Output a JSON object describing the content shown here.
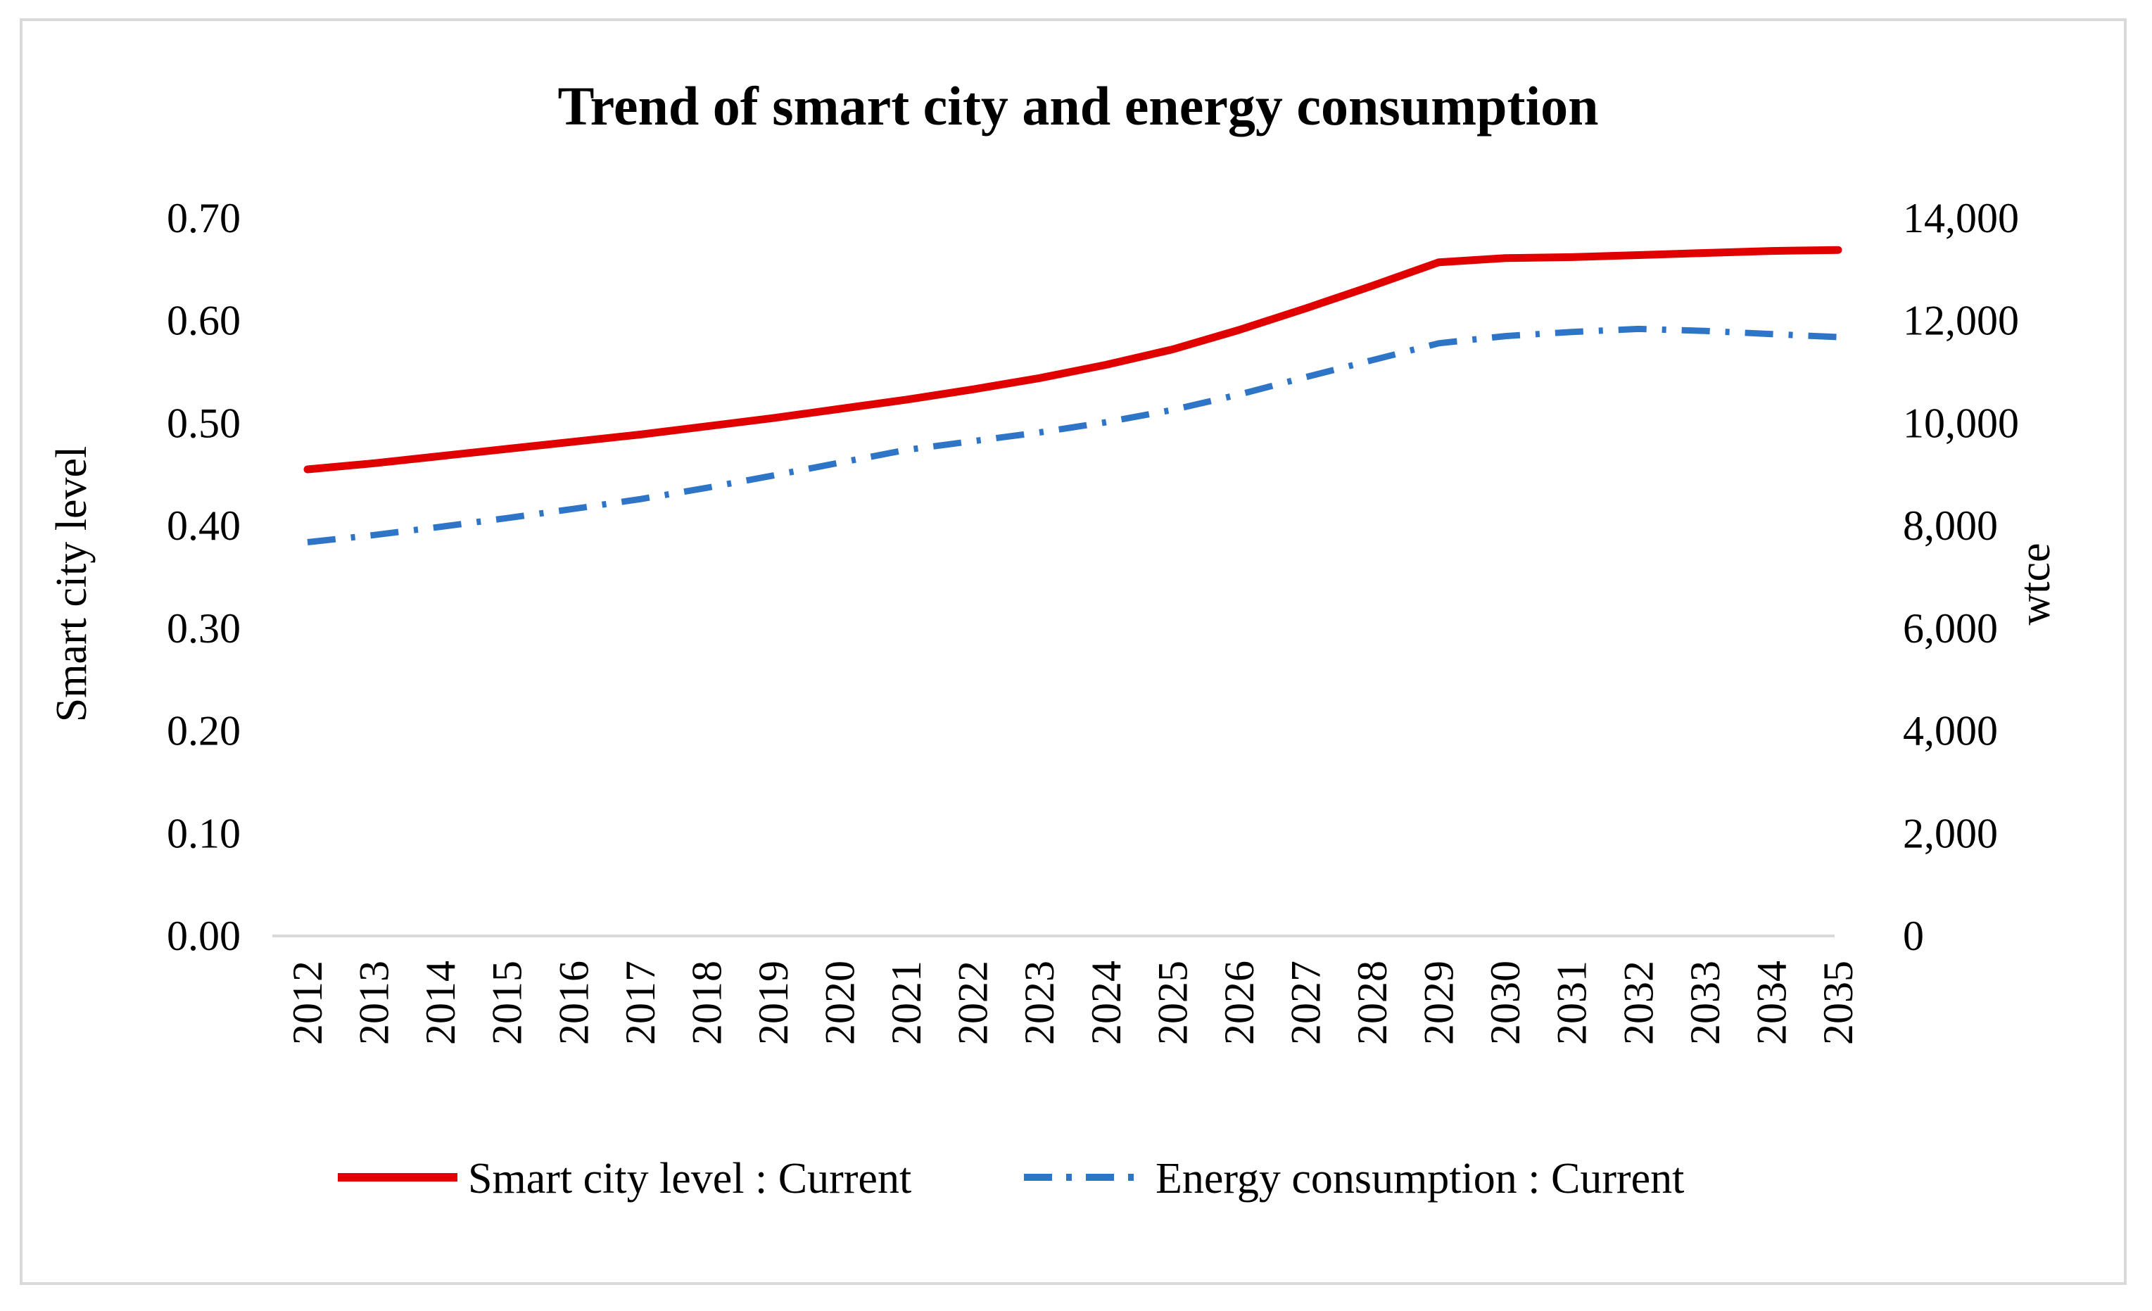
{
  "chart_data": {
    "type": "line",
    "title": "Trend of smart city and energy consumption",
    "ylabel": "Smart city level",
    "y2label": "wtce",
    "ylim": [
      0,
      0.7
    ],
    "y2lim": [
      0,
      14000
    ],
    "yticks": [
      "0.00",
      "0.10",
      "0.20",
      "0.30",
      "0.40",
      "0.50",
      "0.60",
      "0.70"
    ],
    "y2ticks": [
      "0",
      "2,000",
      "4,000",
      "6,000",
      "8,000",
      "10,000",
      "12,000",
      "14,000"
    ],
    "grid": false,
    "legend": "bottom",
    "x": [
      "2012",
      "2013",
      "2014",
      "2015",
      "2016",
      "2017",
      "2018",
      "2019",
      "2020",
      "2021",
      "2022",
      "2023",
      "2024",
      "2025",
      "2026",
      "2027",
      "2028",
      "2029",
      "2030",
      "2031",
      "2032",
      "2033",
      "2034",
      "2035"
    ],
    "series": [
      {
        "name": "Smart city level : Current",
        "axis": "left",
        "color": "#e00000",
        "style": "solid",
        "values": [
          0.455,
          0.461,
          0.468,
          0.475,
          0.482,
          0.489,
          0.497,
          0.505,
          0.514,
          0.523,
          0.533,
          0.544,
          0.557,
          0.572,
          0.591,
          0.612,
          0.634,
          0.657,
          0.661,
          0.662,
          0.664,
          0.666,
          0.668,
          0.669
        ]
      },
      {
        "name": "Energy consumption : Current",
        "axis": "right",
        "color": "#2e75c8",
        "style": "dashdot",
        "values": [
          7680,
          7820,
          7980,
          8150,
          8330,
          8520,
          8740,
          8980,
          9230,
          9480,
          9650,
          9820,
          10020,
          10260,
          10560,
          10900,
          11230,
          11560,
          11700,
          11780,
          11840,
          11800,
          11740,
          11680
        ]
      }
    ]
  }
}
